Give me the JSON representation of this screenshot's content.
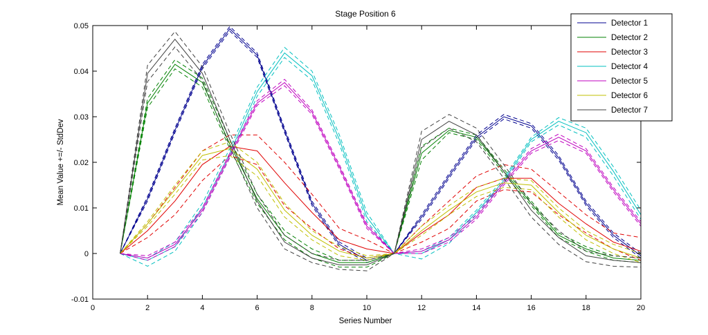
{
  "chart_data": {
    "type": "line",
    "title": "Stage Position 6",
    "xlabel": "Series Number",
    "ylabel": "Mean Value +=/- StdDev",
    "xlim": [
      0,
      20
    ],
    "ylim": [
      -0.01,
      0.05
    ],
    "x_ticks": [
      "0",
      "2",
      "4",
      "6",
      "8",
      "10",
      "12",
      "14",
      "16",
      "18",
      "20"
    ],
    "y_ticks": [
      "-0.01",
      "0",
      "0.01",
      "0.02",
      "0.03",
      "0.04",
      "0.05"
    ],
    "legend_position": "top-right",
    "grid": false,
    "x": [
      1,
      2,
      3,
      4,
      5,
      6,
      7,
      8,
      9,
      10,
      11,
      12,
      13,
      14,
      15,
      16,
      17,
      18,
      19,
      20
    ],
    "series": [
      {
        "name": "Detector 1",
        "color": "#00008f",
        "mean": [
          0,
          0.012,
          0.027,
          0.041,
          0.0493,
          0.0435,
          0.027,
          0.011,
          0.002,
          -0.0015,
          0,
          0.008,
          0.017,
          0.0255,
          0.03,
          0.028,
          0.021,
          0.011,
          0.004,
          -0.0005
        ],
        "upper": [
          0,
          0.0125,
          0.0275,
          0.0415,
          0.0498,
          0.044,
          0.0275,
          0.0115,
          0.0025,
          -0.001,
          0,
          0.0085,
          0.0175,
          0.026,
          0.0305,
          0.0285,
          0.0215,
          0.0115,
          0.0045,
          0
        ],
        "lower": [
          0,
          0.0115,
          0.0265,
          0.0405,
          0.0488,
          0.043,
          0.0265,
          0.0105,
          0.0015,
          -0.002,
          0,
          0.0075,
          0.0165,
          0.025,
          0.0295,
          0.0275,
          0.0205,
          0.0105,
          0.0035,
          -0.001
        ]
      },
      {
        "name": "Detector 2",
        "color": "#008000",
        "mean": [
          0,
          0.033,
          0.0415,
          0.0375,
          0.024,
          0.012,
          0.004,
          0,
          -0.002,
          -0.002,
          0,
          0.022,
          0.027,
          0.0255,
          0.018,
          0.011,
          0.004,
          0.001,
          -0.001,
          -0.0015
        ],
        "upper": [
          0,
          0.034,
          0.0425,
          0.0385,
          0.025,
          0.013,
          0.005,
          0.001,
          -0.0015,
          -0.0015,
          0,
          0.0235,
          0.0275,
          0.026,
          0.0185,
          0.0115,
          0.0045,
          0.0015,
          -0.0005,
          -0.001
        ],
        "lower": [
          0,
          0.032,
          0.0405,
          0.0365,
          0.023,
          0.011,
          0.003,
          -0.001,
          -0.003,
          -0.003,
          0,
          0.0205,
          0.0265,
          0.025,
          0.0175,
          0.0105,
          0.0035,
          0.0005,
          -0.0015,
          -0.002
        ]
      },
      {
        "name": "Detector 3",
        "color": "#e00000",
        "mean": [
          0,
          0.005,
          0.0115,
          0.0195,
          0.0235,
          0.0225,
          0.0155,
          0.009,
          0.003,
          0.001,
          0,
          0.0045,
          0.0085,
          0.0145,
          0.0165,
          0.0165,
          0.011,
          0.0065,
          0.0025,
          0.0005
        ],
        "upper": [
          0,
          0.0065,
          0.0145,
          0.0225,
          0.026,
          0.026,
          0.02,
          0.013,
          0.0055,
          0.003,
          0,
          0.006,
          0.0115,
          0.017,
          0.0195,
          0.0185,
          0.0135,
          0.0085,
          0.0045,
          0.0035
        ],
        "lower": [
          0,
          0.0035,
          0.0085,
          0.016,
          0.0215,
          0.0195,
          0.0105,
          0.0055,
          0.001,
          -0.001,
          0,
          0.0025,
          0.0055,
          0.0115,
          0.014,
          0.0135,
          0.0085,
          0.0045,
          0.001,
          -0.0015
        ]
      },
      {
        "name": "Detector 4",
        "color": "#00bfbf",
        "mean": [
          0,
          -0.0015,
          0.0015,
          0.01,
          0.022,
          0.0355,
          0.044,
          0.039,
          0.025,
          0.008,
          0,
          0,
          0.003,
          0.009,
          0.016,
          0.025,
          0.029,
          0.0265,
          0.018,
          0.0085
        ],
        "upper": [
          0,
          -0.001,
          0.0025,
          0.011,
          0.023,
          0.0365,
          0.0452,
          0.04,
          0.026,
          0.009,
          0,
          0.0005,
          0.0035,
          0.0095,
          0.0165,
          0.0255,
          0.0298,
          0.0275,
          0.019,
          0.0095
        ],
        "lower": [
          0,
          -0.0028,
          0.0005,
          0.009,
          0.021,
          0.0345,
          0.043,
          0.038,
          0.024,
          0.007,
          0,
          -0.0012,
          0.0022,
          0.0085,
          0.0155,
          0.0245,
          0.0282,
          0.0255,
          0.017,
          0.0075
        ]
      },
      {
        "name": "Detector 5",
        "color": "#bf00bf",
        "mean": [
          0,
          -0.001,
          0.002,
          0.0095,
          0.0215,
          0.033,
          0.0375,
          0.031,
          0.019,
          0.006,
          0,
          0.0005,
          0.003,
          0.008,
          0.0155,
          0.0225,
          0.0255,
          0.0225,
          0.014,
          0.0065
        ],
        "upper": [
          0,
          -0.0005,
          0.0025,
          0.01,
          0.022,
          0.0335,
          0.0382,
          0.0315,
          0.0195,
          0.0065,
          0,
          0.001,
          0.0035,
          0.0085,
          0.016,
          0.023,
          0.0262,
          0.023,
          0.0145,
          0.007
        ],
        "lower": [
          0,
          -0.0015,
          0.0015,
          0.009,
          0.021,
          0.0325,
          0.0368,
          0.0305,
          0.0185,
          0.0055,
          0,
          0,
          0.0025,
          0.0075,
          0.015,
          0.022,
          0.0248,
          0.022,
          0.0135,
          0.006
        ]
      },
      {
        "name": "Detector 6",
        "color": "#bfbf00",
        "mean": [
          0,
          0.0065,
          0.014,
          0.0215,
          0.023,
          0.0185,
          0.0095,
          0.004,
          0.0005,
          -0.001,
          0,
          0.005,
          0.0095,
          0.0135,
          0.0155,
          0.015,
          0.009,
          0.004,
          0.001,
          -0.001
        ],
        "upper": [
          0,
          0.007,
          0.015,
          0.0225,
          0.0245,
          0.02,
          0.011,
          0.005,
          0.0015,
          -0.0005,
          0,
          0.006,
          0.0105,
          0.0145,
          0.0165,
          0.016,
          0.01,
          0.005,
          0.002,
          0
        ],
        "lower": [
          0,
          0.006,
          0.013,
          0.0205,
          0.0215,
          0.017,
          0.008,
          0.003,
          -0.0005,
          -0.0015,
          0,
          0.004,
          0.0085,
          0.0125,
          0.0145,
          0.014,
          0.008,
          0.003,
          0,
          -0.002
        ]
      },
      {
        "name": "Detector 7",
        "color": "#3f3f3f",
        "mean": [
          0,
          0.0395,
          0.047,
          0.0395,
          0.025,
          0.0115,
          0.0025,
          -0.001,
          -0.0025,
          -0.0025,
          0,
          0.025,
          0.029,
          0.026,
          0.018,
          0.0095,
          0.0035,
          -0.0005,
          -0.0015,
          -0.002
        ],
        "upper": [
          0,
          0.0413,
          0.0487,
          0.041,
          0.0265,
          0.013,
          0.004,
          0,
          -0.0015,
          -0.0015,
          0,
          0.0268,
          0.0305,
          0.0275,
          0.0195,
          0.011,
          0.005,
          0.0005,
          -0.0005,
          -0.001
        ],
        "lower": [
          0,
          0.0377,
          0.0453,
          0.038,
          0.0235,
          0.01,
          0.001,
          -0.002,
          -0.0035,
          -0.0038,
          0,
          0.0232,
          0.0275,
          0.0245,
          0.0165,
          0.008,
          0.002,
          -0.0018,
          -0.0028,
          -0.003
        ]
      }
    ]
  }
}
